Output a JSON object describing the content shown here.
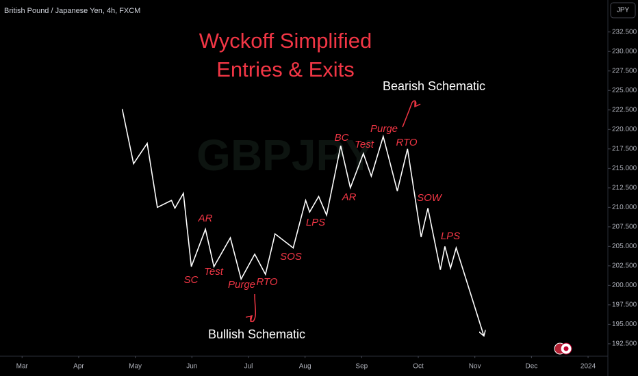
{
  "chart_data": {
    "type": "line",
    "header": "British Pound / Japanese Yen, 4h, FXCM",
    "currency": "JPY",
    "watermark": "GBPJPY",
    "title": "Wyckoff Simplified",
    "subtitle": "Entries & Exits",
    "x": [
      1.77,
      1.97,
      2.21,
      2.39,
      2.64,
      2.7,
      2.85,
      2.99,
      3.24,
      3.39,
      3.68,
      3.87,
      4.11,
      4.3,
      4.47,
      4.79,
      5.01,
      5.08,
      5.24,
      5.38,
      5.63,
      5.8,
      6.03,
      6.17,
      6.38,
      6.63,
      6.81,
      7.05,
      7.17,
      7.39,
      7.47,
      7.57,
      7.67,
      8.16
    ],
    "series": [
      {
        "color": "#ffffff",
        "values": [
          222.6,
          215.6,
          218.2,
          210.0,
          210.9,
          209.9,
          211.8,
          202.4,
          207.2,
          202.4,
          206.1,
          200.8,
          204.0,
          201.4,
          206.6,
          204.8,
          210.9,
          209.4,
          211.4,
          209.0,
          217.9,
          212.5,
          216.9,
          214.0,
          219.1,
          212.1,
          217.5,
          206.2,
          209.9,
          202.0,
          205.0,
          202.2,
          204.8,
          193.5
        ]
      }
    ],
    "xlim": [
      -0.39,
      10.35
    ],
    "xticks": [
      {
        "value": 0,
        "label": "Mar"
      },
      {
        "value": 1,
        "label": "Apr"
      },
      {
        "value": 2,
        "label": "May"
      },
      {
        "value": 3,
        "label": "Jun"
      },
      {
        "value": 4,
        "label": "Jul"
      },
      {
        "value": 5,
        "label": "Aug"
      },
      {
        "value": 6,
        "label": "Sep"
      },
      {
        "value": 7,
        "label": "Oct"
      },
      {
        "value": 8,
        "label": "Nov"
      },
      {
        "value": 9,
        "label": "Dec"
      },
      {
        "value": 10,
        "label": "2024"
      }
    ],
    "ylim": [
      191.0,
      236.6
    ],
    "yticks": [
      {
        "value": 192.5,
        "label": "192.500"
      },
      {
        "value": 195,
        "label": "195.000"
      },
      {
        "value": 197.5,
        "label": "197.500"
      },
      {
        "value": 200,
        "label": "200.000"
      },
      {
        "value": 202.5,
        "label": "202.500"
      },
      {
        "value": 205,
        "label": "205.000"
      },
      {
        "value": 207.5,
        "label": "207.500"
      },
      {
        "value": 210,
        "label": "210.000"
      },
      {
        "value": 212.5,
        "label": "212.500"
      },
      {
        "value": 215,
        "label": "215.000"
      },
      {
        "value": 217.5,
        "label": "217.500"
      },
      {
        "value": 220,
        "label": "220.000"
      },
      {
        "value": 222.5,
        "label": "222.500"
      },
      {
        "value": 225,
        "label": "225.000"
      },
      {
        "value": 227.5,
        "label": "227.500"
      },
      {
        "value": 230,
        "label": "230.000"
      },
      {
        "value": 232.5,
        "label": "232.500"
      }
    ],
    "annotations": [
      {
        "text": "Bearish Schematic",
        "color": "#ffffff"
      },
      {
        "text": "Bullish Schematic",
        "color": "#ffffff"
      },
      {
        "text": "SC",
        "color": "#f23645"
      },
      {
        "text": "AR",
        "color": "#f23645"
      },
      {
        "text": "Test",
        "color": "#f23645"
      },
      {
        "text": "Purge",
        "color": "#f23645"
      },
      {
        "text": "RTO",
        "color": "#f23645"
      },
      {
        "text": "SOS",
        "color": "#f23645"
      },
      {
        "text": "LPS",
        "color": "#f23645"
      },
      {
        "text": "BC",
        "color": "#f23645"
      },
      {
        "text": "AR",
        "color": "#f23645"
      },
      {
        "text": "Test",
        "color": "#f23645"
      },
      {
        "text": "Purge",
        "color": "#f23645"
      },
      {
        "text": "RTO",
        "color": "#f23645"
      },
      {
        "text": "SOW",
        "color": "#f23645"
      },
      {
        "text": "LPS",
        "color": "#f23645"
      }
    ]
  }
}
